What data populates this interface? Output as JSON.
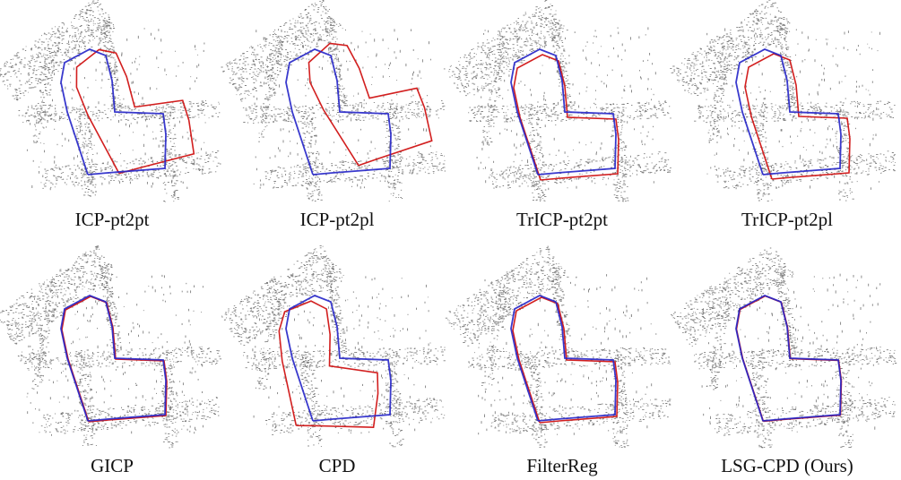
{
  "panels": [
    {
      "label": "ICP-pt2pt"
    },
    {
      "label": "ICP-pt2pl"
    },
    {
      "label": "TrICP-pt2pt"
    },
    {
      "label": "TrICP-pt2pl"
    },
    {
      "label": "GICP"
    },
    {
      "label": "CPD"
    },
    {
      "label": "FilterReg"
    },
    {
      "label": "LSG-CPD (Ours)"
    }
  ]
}
